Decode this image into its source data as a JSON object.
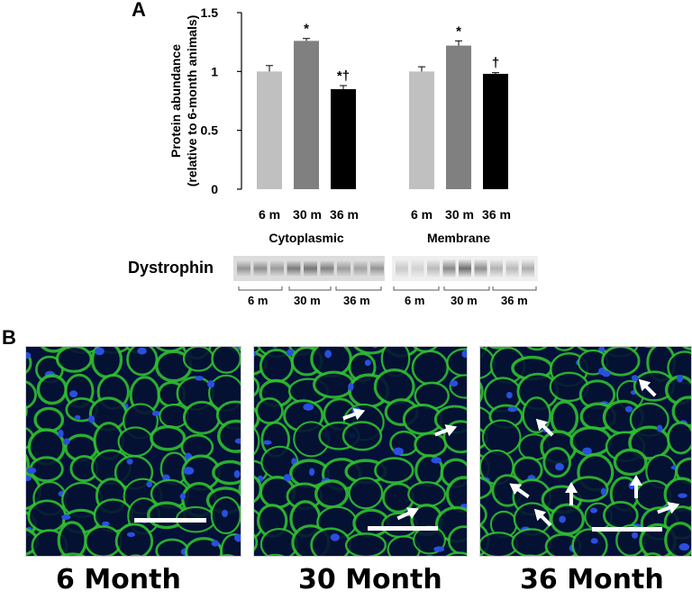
{
  "panels": {
    "a_label": "A",
    "b_label": "B"
  },
  "chart_data": {
    "type": "bar",
    "ylabel_line1": "Protein abundance",
    "ylabel_line2": "(relative to 6-month animals)",
    "ylim": [
      0,
      1.5
    ],
    "yticks": [
      "0",
      "0.5",
      "1",
      "1.5"
    ],
    "groups": [
      {
        "name": "Cytoplasmic",
        "categories": [
          "6 m",
          "30 m",
          "36 m"
        ],
        "values": [
          1.0,
          1.26,
          0.85
        ],
        "errors": [
          0.05,
          0.02,
          0.03
        ],
        "annotations": [
          "",
          "*",
          "*†"
        ]
      },
      {
        "name": "Membrane",
        "categories": [
          "6 m",
          "30 m",
          "36 m"
        ],
        "values": [
          1.0,
          1.22,
          0.98
        ],
        "errors": [
          0.04,
          0.04,
          0.01
        ],
        "annotations": [
          "",
          "*",
          "†"
        ]
      }
    ],
    "bar_colors": [
      "#c0c0c0",
      "#808080",
      "#000000"
    ]
  },
  "blot": {
    "label": "Dystrophin",
    "cyto_lanes": [
      "6 m",
      "30 m",
      "36 m"
    ],
    "membrane_lanes": [
      "6 m",
      "30 m",
      "36 m"
    ]
  },
  "micrographs": [
    {
      "caption": "6 Month"
    },
    {
      "caption": "30 Month"
    },
    {
      "caption": "36 Month"
    }
  ],
  "colors": {
    "membrane_stain": "#2fbf2f",
    "nuclei_stain": "#2a4fe0",
    "background": "#04103a"
  }
}
